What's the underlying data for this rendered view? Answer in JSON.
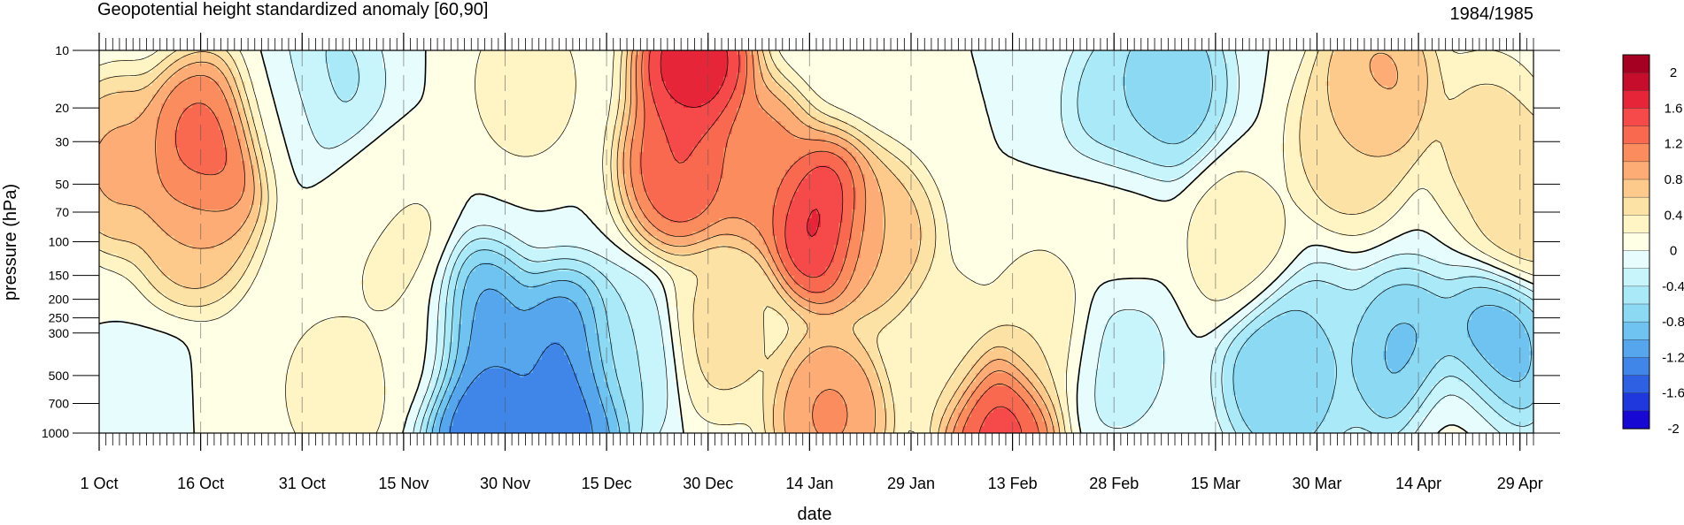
{
  "chart_data": {
    "type": "heatmap",
    "title": "Geopotential height standardized anomaly [60,90]",
    "subtitle": "1984/1985",
    "xlabel": "date",
    "ylabel": "pressure (hPa)",
    "y_scale": "log",
    "y_reversed": true,
    "x_ticks": [
      "1 Oct",
      "16 Oct",
      "31 Oct",
      "15 Nov",
      "30 Nov",
      "15 Dec",
      "30 Dec",
      "14 Jan",
      "29 Jan",
      "13 Feb",
      "28 Feb",
      "15 Mar",
      "30 Mar",
      "14 Apr",
      "29 Apr"
    ],
    "x_range": [
      "1 Oct",
      "1 May"
    ],
    "y_ticks": [
      10,
      20,
      30,
      50,
      70,
      100,
      150,
      200,
      250,
      300,
      500,
      700,
      1000
    ],
    "ylim": [
      10,
      1000
    ],
    "grid": "dashed vertical lines at labeled dates",
    "colorbar": {
      "labels": [
        "2",
        "1.6",
        "1.2",
        "0.8",
        "0.4",
        "0",
        "-0.4",
        "-0.8",
        "-1.2",
        "-1.6",
        "-2"
      ],
      "levels": [
        -2,
        -1.8,
        -1.6,
        -1.4,
        -1.2,
        -1.0,
        -0.8,
        -0.6,
        -0.4,
        -0.2,
        0,
        0.2,
        0.4,
        0.6,
        0.8,
        1.0,
        1.2,
        1.4,
        1.6,
        1.8,
        2
      ],
      "colors": [
        "#a50021",
        "#c70d2c",
        "#e62638",
        "#f6494a",
        "#f8694f",
        "#fb8c5e",
        "#fcac74",
        "#fdca8c",
        "#fde2a6",
        "#fff4c4",
        "#ffffe6",
        "#e6fcfd",
        "#c8f4fb",
        "#a9e9f8",
        "#8cd9f4",
        "#6ec3f0",
        "#55a6ec",
        "#3f86e8",
        "#2d60e3",
        "#1f38de",
        "#1808d4"
      ]
    },
    "features": [
      {
        "day": 3,
        "level": 40,
        "value": 0.9
      },
      {
        "day": 14,
        "level": 80,
        "value": 0.8
      },
      {
        "day": 15,
        "level": 40,
        "value": 1.4
      },
      {
        "day": 16,
        "level": 30,
        "value": 1.3
      },
      {
        "day": 10,
        "level": 850,
        "value": -0.1
      },
      {
        "day": 20,
        "level": 800,
        "value": 0.2
      },
      {
        "day": 27,
        "level": 20,
        "value": 0.05
      },
      {
        "day": 33,
        "level": 15,
        "value": -0.5
      },
      {
        "day": 35,
        "level": 600,
        "value": 0.3
      },
      {
        "day": 40,
        "level": 70,
        "value": 0.1
      },
      {
        "day": 43,
        "level": 100,
        "value": 0.3
      },
      {
        "day": 47,
        "level": 300,
        "value": 0.2
      },
      {
        "day": 56,
        "level": 300,
        "value": -1.2
      },
      {
        "day": 57,
        "level": 850,
        "value": -1.5
      },
      {
        "day": 63,
        "level": 15,
        "value": 0.3
      },
      {
        "day": 69,
        "level": 400,
        "value": -1.3
      },
      {
        "day": 70,
        "level": 800,
        "value": -1.4
      },
      {
        "day": 78,
        "level": 400,
        "value": -0.4
      },
      {
        "day": 86,
        "level": 40,
        "value": 1.5
      },
      {
        "day": 88,
        "level": 12,
        "value": 1.9
      },
      {
        "day": 92,
        "level": 300,
        "value": 0.5
      },
      {
        "day": 97,
        "level": 40,
        "value": 1.2
      },
      {
        "day": 107,
        "level": 80,
        "value": 1.8
      },
      {
        "day": 108,
        "level": 800,
        "value": 1.1
      },
      {
        "day": 115,
        "level": 100,
        "value": 0.8
      },
      {
        "day": 125,
        "level": 350,
        "value": 0.3
      },
      {
        "day": 133,
        "level": 900,
        "value": 1.6
      },
      {
        "day": 140,
        "level": 300,
        "value": 0.4
      },
      {
        "day": 150,
        "level": 400,
        "value": -0.3
      },
      {
        "day": 152,
        "level": 20,
        "value": -0.6
      },
      {
        "day": 158,
        "level": 15,
        "value": -0.8
      },
      {
        "day": 150,
        "level": 80,
        "value": 0.1
      },
      {
        "day": 175,
        "level": 500,
        "value": -0.9
      },
      {
        "day": 180,
        "level": 400,
        "value": -0.6
      },
      {
        "day": 168,
        "level": 100,
        "value": 0.3
      },
      {
        "day": 185,
        "level": 30,
        "value": 0.6
      },
      {
        "day": 189,
        "level": 15,
        "value": 0.9
      },
      {
        "day": 193,
        "level": 400,
        "value": -0.9
      },
      {
        "day": 205,
        "level": 30,
        "value": 0.5
      },
      {
        "day": 206,
        "level": 400,
        "value": -1.0
      },
      {
        "day": 211,
        "level": 60,
        "value": 0.6
      },
      {
        "day": 201,
        "level": 900,
        "value": 0.1
      }
    ]
  }
}
